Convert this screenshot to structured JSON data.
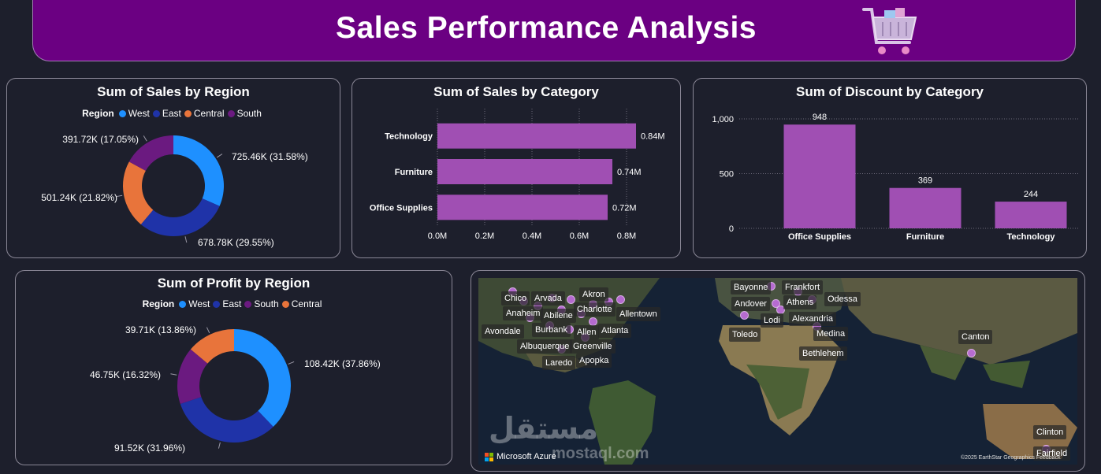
{
  "header": {
    "title": "Sales Performance Analysis",
    "icon": "shopping-cart-icon"
  },
  "colors": {
    "West": "#1e90ff",
    "East": "#1f33a8",
    "Central": "#e8743b",
    "South": "#6b1a80",
    "bar": "#a04fb3",
    "header_bg": "#6b0082"
  },
  "sales_by_region": {
    "title": "Sum of Sales by Region",
    "legend_title": "Region",
    "legend": [
      "West",
      "East",
      "Central",
      "South"
    ],
    "chart_data": {
      "type": "pie",
      "labels": [
        "West",
        "East",
        "Central",
        "South"
      ],
      "values": [
        725.46,
        678.78,
        501.24,
        391.72
      ],
      "units": "K",
      "data_labels": [
        "725.46K (31.58%)",
        "678.78K (29.55%)",
        "501.24K (21.82%)",
        "391.72K (17.05%)"
      ]
    }
  },
  "sales_by_category": {
    "title": "Sum of Sales by Category",
    "chart_data": {
      "type": "bar",
      "orientation": "horizontal",
      "categories": [
        "Technology",
        "Furniture",
        "Office Supplies"
      ],
      "values": [
        0.84,
        0.74,
        0.72
      ],
      "units": "M",
      "data_labels": [
        "0.84M",
        "0.74M",
        "0.72M"
      ],
      "x_ticks": [
        "0.0M",
        "0.2M",
        "0.4M",
        "0.6M",
        "0.8M"
      ],
      "xlim": [
        0,
        0.8
      ]
    }
  },
  "discount_by_category": {
    "title": "Sum of Discount by Category",
    "chart_data": {
      "type": "bar",
      "categories": [
        "Office Supplies",
        "Furniture",
        "Technology"
      ],
      "values": [
        948,
        369,
        244
      ],
      "data_labels": [
        "948",
        "369",
        "244"
      ],
      "y_ticks": [
        "1,000",
        "500",
        "0"
      ],
      "ylim": [
        0,
        1000
      ]
    }
  },
  "profit_by_region": {
    "title": "Sum of Profit by Region",
    "legend_title": "Region",
    "legend": [
      "West",
      "East",
      "South",
      "Central"
    ],
    "chart_data": {
      "type": "pie",
      "labels": [
        "West",
        "East",
        "South",
        "Central"
      ],
      "values": [
        108.42,
        91.52,
        46.75,
        39.71
      ],
      "units": "K",
      "data_labels": [
        "108.42K (37.86%)",
        "91.52K (31.96%)",
        "46.75K (16.32%)",
        "39.71K (13.86%)"
      ]
    }
  },
  "map": {
    "cities": [
      "Chico",
      "Arvada",
      "Akron",
      "Anaheim",
      "Abilene",
      "Charlotte",
      "Allentown",
      "Avondale",
      "Burbank",
      "Allen",
      "Atlanta",
      "Albuquerque",
      "Greenville",
      "Laredo",
      "Apopka",
      "Bayonne",
      "Frankfort",
      "Andover",
      "Athens",
      "Odessa",
      "Lodi",
      "Alexandria",
      "Toledo",
      "Medina",
      "Bethlehem",
      "Canton",
      "Clinton",
      "Fairfield"
    ],
    "brand": "Microsoft Azure",
    "credit": "©2025 EarthStar Geographics  Feedback"
  },
  "watermark": {
    "main": "مستقل",
    "sub": "mostaql.com"
  }
}
